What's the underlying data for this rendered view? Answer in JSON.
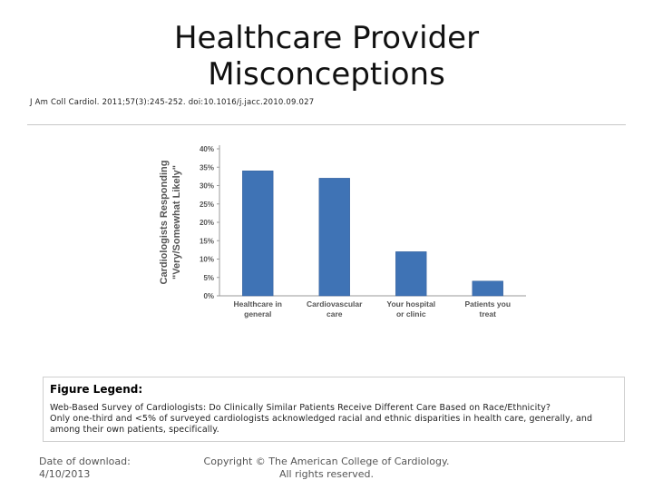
{
  "slide": {
    "title_line1": "Healthcare Provider",
    "title_line2": "Misconceptions",
    "citation": "J Am Coll Cardiol. 2011;57(3):245-252. doi:10.1016/j.jacc.2010.09.027"
  },
  "chart_data": {
    "type": "bar",
    "categories": [
      [
        "Healthcare in",
        "general"
      ],
      [
        "Cardiovascular",
        "care"
      ],
      [
        "Your hospital",
        "or clinic"
      ],
      [
        "Patients you",
        "treat"
      ]
    ],
    "values": [
      34,
      32,
      12,
      4
    ],
    "ylabel_line1": "Cardiologists Responding",
    "ylabel_line2": "\"Very/Somewhat Likely\"",
    "yticks": [
      "0%",
      "5%",
      "10%",
      "15%",
      "20%",
      "25%",
      "30%",
      "35%",
      "40%"
    ],
    "ylim": [
      0,
      40
    ],
    "grid": false,
    "bar_color": "#3f73b5"
  },
  "legend": {
    "title": "Figure Legend:",
    "line1": "Web-Based Survey of Cardiologists: Do Clinically Similar Patients Receive Different Care Based on Race/Ethnicity?",
    "line2": "Only one-third and <5% of surveyed cardiologists acknowledged racial and ethnic disparities in health care, generally, and among their own patients, specifically."
  },
  "footer": {
    "date_label": "Date of download:",
    "date_value": "4/10/2013",
    "copyright_line1": "Copyright © The American College of Cardiology.",
    "copyright_line2": "All rights reserved."
  }
}
